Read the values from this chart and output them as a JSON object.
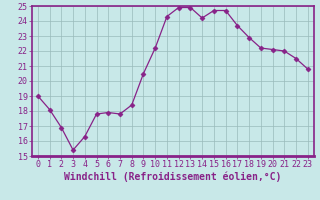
{
  "x": [
    0,
    1,
    2,
    3,
    4,
    5,
    6,
    7,
    8,
    9,
    10,
    11,
    12,
    13,
    14,
    15,
    16,
    17,
    18,
    19,
    20,
    21,
    22,
    23
  ],
  "y": [
    19.0,
    18.1,
    16.9,
    15.4,
    16.3,
    17.8,
    17.9,
    17.8,
    18.4,
    20.5,
    22.2,
    24.3,
    24.9,
    24.9,
    24.2,
    24.7,
    24.7,
    23.7,
    22.9,
    22.2,
    22.1,
    22.0,
    21.5,
    20.8
  ],
  "line_color": "#882288",
  "marker": "D",
  "marker_size": 2.5,
  "bg_color": "#c8e8e8",
  "grid_color": "#99bbbb",
  "spine_color": "#882288",
  "xlabel": "Windchill (Refroidissement éolien,°C)",
  "xlabel_fontsize": 7.0,
  "tick_fontsize": 6.0,
  "ylim": [
    15,
    25
  ],
  "xlim": [
    -0.5,
    23.5
  ],
  "yticks": [
    15,
    16,
    17,
    18,
    19,
    20,
    21,
    22,
    23,
    24,
    25
  ],
  "xtick_labels": [
    "0",
    "1",
    "2",
    "3",
    "4",
    "5",
    "6",
    "7",
    "8",
    "9",
    "10",
    "11",
    "12",
    "13",
    "14",
    "15",
    "16",
    "17",
    "18",
    "19",
    "20",
    "21",
    "22",
    "23"
  ],
  "xticks": [
    0,
    1,
    2,
    3,
    4,
    5,
    6,
    7,
    8,
    9,
    10,
    11,
    12,
    13,
    14,
    15,
    16,
    17,
    18,
    19,
    20,
    21,
    22,
    23
  ]
}
